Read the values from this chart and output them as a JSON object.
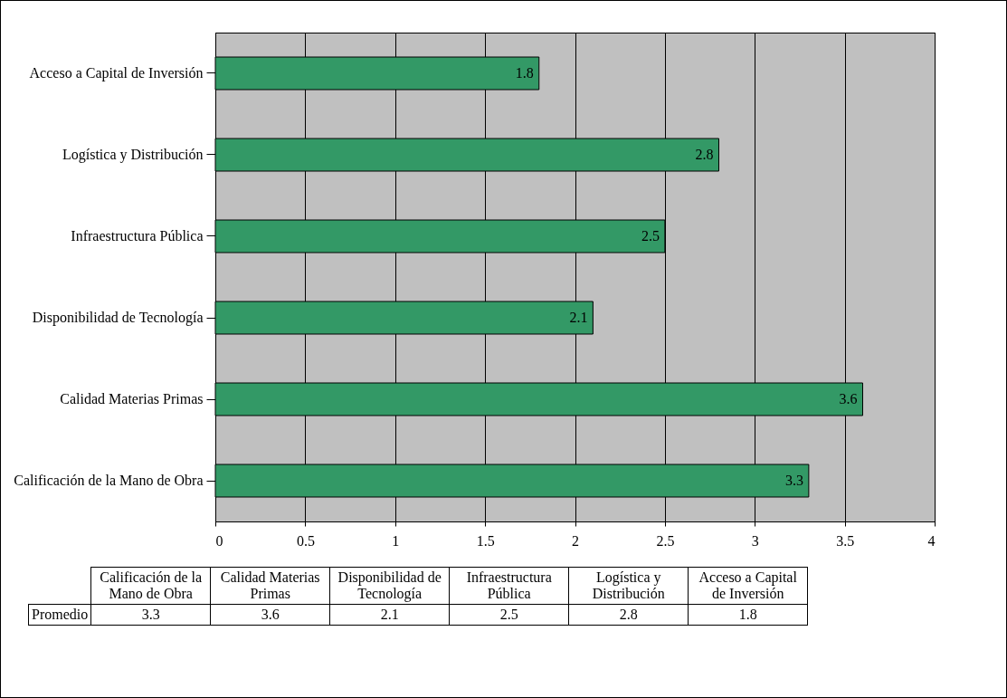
{
  "chart_data": [
    {
      "type": "bar",
      "orientation": "horizontal",
      "categories": [
        "Acceso a Capital de Inversión",
        "Logística y Distribución",
        "Infraestructura Pública",
        "Disponibilidad de Tecnología",
        "Calidad Materias Primas",
        "Calificación de la Mano de Obra"
      ],
      "series": [
        {
          "color": "#339966",
          "values": [
            1.8,
            2.8,
            2.5,
            2.1,
            3.6,
            3.3
          ]
        }
      ],
      "xlim": [
        0,
        4
      ],
      "xticks": [
        0,
        0.5,
        1,
        1.5,
        2,
        2.5,
        3,
        3.5,
        4
      ],
      "grid": "x",
      "legend": false,
      "data_labels": true
    },
    {
      "type": "other",
      "categories": [
        "Calificación de la Mano de Obra",
        "Calidad Materias Primas",
        "Disponibilidad de Tecnología",
        "Infraestructura Pública",
        "Logística y Distribución",
        "Acceso a Capital de Inversión"
      ],
      "series": [
        {
          "name": "Promedio",
          "values": [
            3.3,
            3.6,
            2.1,
            2.5,
            2.8,
            1.8
          ]
        }
      ],
      "data_labels": true
    }
  ]
}
